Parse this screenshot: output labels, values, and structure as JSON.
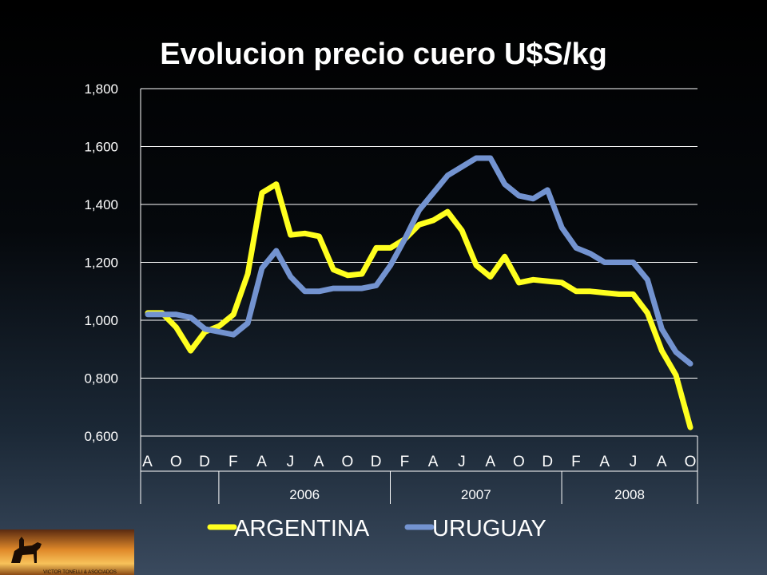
{
  "colors": {
    "background_top": "#000000",
    "background_bottom": "#3a4a5e",
    "argentina": "#ffff1f",
    "uruguay": "#7393d0",
    "grid": "#ffffff",
    "text": "#ffffff"
  },
  "logo": {
    "caption": "VICTOR TONELLI & ASOCIADOS"
  },
  "chart_data": {
    "type": "line",
    "title": "Evolucion precio cuero U$S/kg",
    "xlabel": "",
    "ylabel": "",
    "ylim": [
      0.6,
      1.8
    ],
    "yticks": [
      "1,800",
      "1,600",
      "1,400",
      "1,200",
      "1,000",
      "0,800",
      "0,600"
    ],
    "ytick_values": [
      1.8,
      1.6,
      1.4,
      1.2,
      1.0,
      0.8,
      0.6
    ],
    "grid": true,
    "legend_position": "bottom",
    "month_labels": [
      "A",
      "O",
      "D",
      "F",
      "A",
      "J",
      "A",
      "O",
      "D",
      "F",
      "A",
      "J",
      "A",
      "O",
      "D",
      "F",
      "A",
      "J",
      "A",
      "O"
    ],
    "year_groups": [
      {
        "label": "2006",
        "start_label_index": 2,
        "end_label_index": 8
      },
      {
        "label": "2007",
        "start_label_index": 8,
        "end_label_index": 14
      },
      {
        "label": "2008",
        "start_label_index": 14,
        "end_label_index": 19
      }
    ],
    "series": [
      {
        "name": "ARGENTINA",
        "color": "#ffff1f",
        "values": [
          1.025,
          1.025,
          0.975,
          0.895,
          0.96,
          0.98,
          1.02,
          1.16,
          1.44,
          1.47,
          1.295,
          1.3,
          1.29,
          1.175,
          1.155,
          1.16,
          1.25,
          1.25,
          1.28,
          1.33,
          1.345,
          1.375,
          1.31,
          1.19,
          1.15,
          1.22,
          1.13,
          1.14,
          1.135,
          1.13,
          1.1,
          1.1,
          1.095,
          1.09,
          1.09,
          1.025,
          0.895,
          0.81,
          0.63
        ]
      },
      {
        "name": "URUGUAY",
        "color": "#7393d0",
        "values": [
          1.02,
          1.02,
          1.02,
          1.01,
          0.97,
          0.96,
          0.95,
          0.99,
          1.18,
          1.24,
          1.15,
          1.1,
          1.1,
          1.11,
          1.11,
          1.11,
          1.12,
          1.19,
          1.28,
          1.38,
          1.44,
          1.5,
          1.53,
          1.56,
          1.56,
          1.47,
          1.43,
          1.42,
          1.45,
          1.32,
          1.25,
          1.23,
          1.2,
          1.2,
          1.2,
          1.14,
          0.97,
          0.89,
          0.85
        ]
      }
    ]
  }
}
